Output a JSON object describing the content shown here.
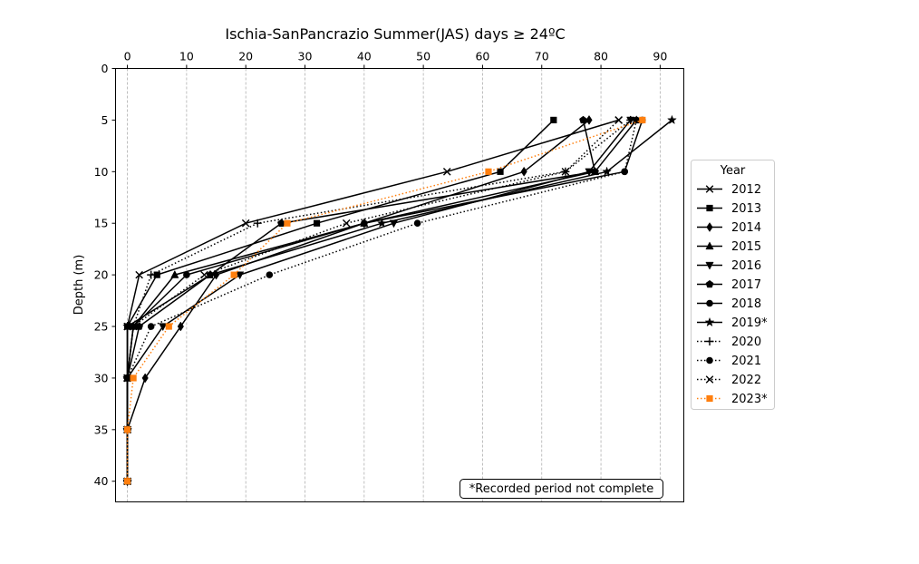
{
  "chart_data": {
    "type": "line",
    "title": "Ischia-SanPancrazio Summer(JAS) days ≥ 24ºC",
    "xlabel": "",
    "ylabel": "Depth (m)",
    "x_axis_position": "top",
    "y_inverted": true,
    "xlim": [
      -2,
      94
    ],
    "ylim": [
      42,
      0
    ],
    "xticks": [
      0,
      10,
      20,
      30,
      40,
      50,
      60,
      70,
      80,
      90
    ],
    "yticks": [
      0,
      5,
      10,
      15,
      20,
      25,
      30,
      35,
      40
    ],
    "grid": "vertical dashed",
    "legend_title": "Year",
    "legend_position": "right",
    "note": "*Recorded period not complete",
    "depth": [
      5,
      10,
      15,
      20,
      25,
      30,
      35,
      40
    ],
    "series": [
      {
        "name": "2012",
        "marker": "x",
        "line": "solid",
        "color": "#000000",
        "x": [
          83,
          54,
          20,
          2,
          0,
          0,
          0,
          0
        ]
      },
      {
        "name": "2013",
        "marker": "square",
        "line": "solid",
        "color": "#000000",
        "x": [
          72,
          63,
          32,
          5,
          0,
          0,
          0,
          0
        ]
      },
      {
        "name": "2014",
        "marker": "diamond",
        "line": "solid",
        "color": "#000000",
        "x": [
          78,
          67,
          40,
          15,
          9,
          3,
          0,
          0
        ]
      },
      {
        "name": "2015",
        "marker": "triangle-up",
        "line": "solid",
        "color": "#000000",
        "x": [
          86,
          79,
          40,
          8,
          1,
          0,
          0,
          0
        ]
      },
      {
        "name": "2016",
        "marker": "triangle-down",
        "line": "solid",
        "color": "#000000",
        "x": [
          85,
          78,
          45,
          19,
          6,
          0,
          0,
          0
        ]
      },
      {
        "name": "2017",
        "marker": "pentagon",
        "line": "solid",
        "color": "#000000",
        "x": [
          77,
          79,
          26,
          14,
          2,
          0,
          0,
          0
        ]
      },
      {
        "name": "2018",
        "marker": "circle",
        "line": "solid",
        "color": "#000000",
        "x": [
          87,
          84,
          40,
          10,
          1,
          0,
          0,
          0
        ]
      },
      {
        "name": "2019*",
        "marker": "star",
        "line": "solid",
        "color": "#000000",
        "x": [
          92,
          81,
          43,
          14,
          0,
          0,
          0,
          0
        ]
      },
      {
        "name": "2020",
        "marker": "plus",
        "line": "dotted",
        "color": "#000000",
        "x": [
          85,
          74,
          22,
          4,
          1,
          0,
          0,
          0
        ]
      },
      {
        "name": "2021",
        "marker": "circle",
        "line": "dotted",
        "color": "#000000",
        "x": [
          86,
          84,
          49,
          24,
          4,
          0,
          0,
          0
        ]
      },
      {
        "name": "2022",
        "marker": "x",
        "line": "dotted",
        "color": "#000000",
        "x": [
          83,
          74,
          37,
          13,
          1,
          0,
          0,
          0
        ]
      },
      {
        "name": "2023*",
        "marker": "square",
        "line": "dotted",
        "color": "#ff7f0e",
        "x": [
          87,
          61,
          27,
          18,
          7,
          1,
          0,
          0
        ]
      }
    ]
  }
}
